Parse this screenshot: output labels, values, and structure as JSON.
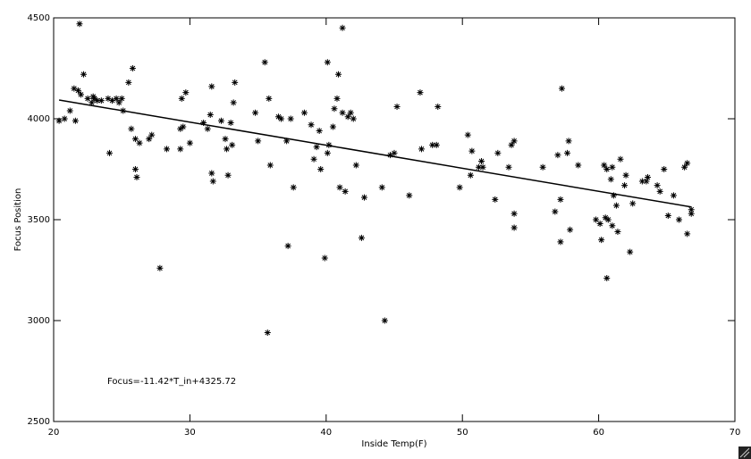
{
  "chart_data": {
    "type": "scatter",
    "x_label": "Inside Temp(F)",
    "y_label": "Focus Position",
    "annotation": "Focus=-11.42*T_in+4325.72",
    "xlim": [
      20,
      70
    ],
    "ylim": [
      2500,
      4500
    ],
    "xticks": [
      20,
      30,
      40,
      50,
      60,
      70
    ],
    "yticks": [
      2500,
      3000,
      3500,
      4000,
      4500
    ],
    "color": "#000000",
    "x": [
      21.9,
      20.4,
      20.8,
      21.2,
      21.6,
      21.5,
      21.8,
      22.2,
      22.0,
      22.5,
      22.8,
      23.0,
      23.2,
      22.9,
      23.5,
      24.0,
      24.3,
      24.6,
      24.8,
      25.0,
      25.1,
      25.5,
      25.8,
      24.1,
      25.7,
      26.0,
      26.3,
      26.0,
      26.1,
      27.0,
      27.2,
      27.8,
      28.3,
      29.3,
      29.4,
      29.7,
      29.5,
      30.0,
      29.3,
      31.0,
      31.3,
      31.5,
      31.6,
      31.6,
      31.7,
      32.3,
      32.6,
      32.7,
      32.8,
      33.0,
      33.2,
      33.3,
      33.1,
      34.8,
      35.0,
      35.5,
      35.8,
      35.9,
      35.7,
      36.5,
      36.7,
      37.1,
      37.2,
      37.4,
      37.6,
      38.4,
      38.9,
      39.1,
      39.3,
      39.5,
      39.6,
      39.9,
      40.1,
      40.2,
      40.1,
      40.5,
      40.6,
      40.8,
      40.9,
      41.0,
      41.2,
      41.2,
      41.4,
      41.6,
      41.8,
      42.0,
      42.2,
      42.6,
      42.8,
      44.1,
      44.3,
      44.7,
      45.0,
      45.2,
      46.1,
      46.9,
      47.0,
      47.8,
      48.1,
      48.2,
      49.8,
      50.4,
      50.6,
      50.7,
      51.2,
      51.4,
      51.5,
      52.4,
      52.6,
      53.4,
      53.6,
      53.8,
      53.8,
      53.8,
      55.9,
      56.8,
      57.0,
      57.2,
      57.3,
      57.2,
      57.7,
      57.8,
      57.9,
      58.5,
      59.8,
      60.1,
      60.4,
      60.6,
      60.5,
      60.7,
      60.6,
      60.9,
      61.0,
      61.1,
      61.0,
      61.3,
      61.4,
      61.6,
      61.9,
      62.0,
      62.3,
      62.5,
      63.2,
      63.5,
      63.6,
      64.3,
      64.5,
      64.8,
      65.1,
      65.5,
      65.9,
      66.3,
      66.5,
      66.5,
      66.8,
      66.8,
      60.2
    ],
    "values": [
      4470,
      3990,
      4000,
      4040,
      3990,
      4150,
      4140,
      4220,
      4120,
      4100,
      4080,
      4100,
      4090,
      4110,
      4090,
      4100,
      4090,
      4100,
      4080,
      4100,
      4040,
      4180,
      4250,
      3830,
      3950,
      3900,
      3880,
      3750,
      3710,
      3900,
      3920,
      3260,
      3850,
      3950,
      4100,
      4130,
      3960,
      3880,
      3850,
      3980,
      3950,
      4020,
      4160,
      3730,
      3690,
      3990,
      3900,
      3850,
      3720,
      3980,
      4080,
      4180,
      3870,
      4030,
      3890,
      4280,
      4100,
      3770,
      2940,
      4010,
      4000,
      3890,
      3370,
      4000,
      3660,
      4030,
      3970,
      3800,
      3860,
      3940,
      3750,
      3310,
      3830,
      3870,
      4280,
      3960,
      4050,
      4100,
      4220,
      3660,
      4450,
      4030,
      3640,
      4010,
      4030,
      4000,
      3770,
      3410,
      3610,
      3660,
      3000,
      3820,
      3830,
      4060,
      3620,
      4130,
      3850,
      3870,
      3870,
      4060,
      3660,
      3920,
      3720,
      3840,
      3760,
      3790,
      3760,
      3600,
      3830,
      3760,
      3870,
      3890,
      3530,
      3460,
      3760,
      3540,
      3820,
      3600,
      4150,
      3390,
      3830,
      3890,
      3450,
      3770,
      3500,
      3480,
      3770,
      3750,
      3510,
      3500,
      3210,
      3700,
      3760,
      3620,
      3470,
      3570,
      3440,
      3800,
      3670,
      3720,
      3340,
      3580,
      3690,
      3690,
      3710,
      3670,
      3640,
      3750,
      3520,
      3620,
      3500,
      3760,
      3780,
      3430,
      3550,
      3530,
      3400
    ],
    "fit": {
      "x": [
        20.4,
        66.8
      ],
      "values": [
        4093,
        3563
      ]
    }
  }
}
